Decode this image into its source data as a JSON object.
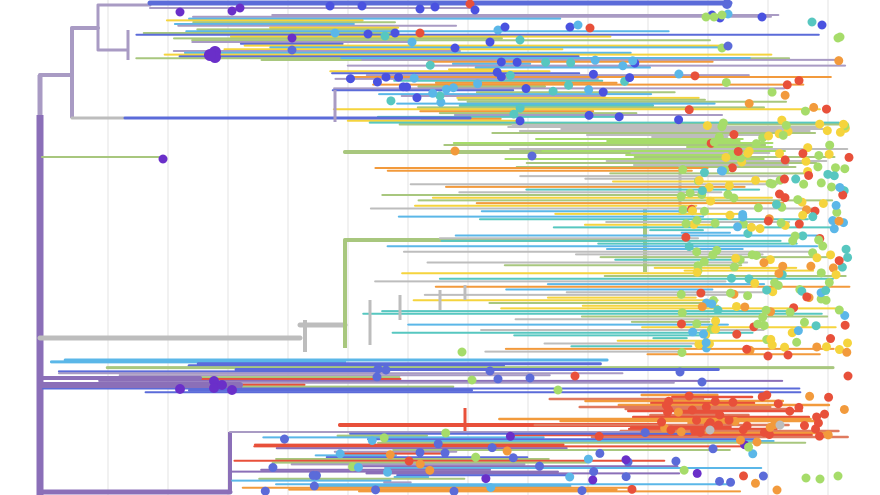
{
  "view": {
    "type": "phylogenetic-tree",
    "layout": "rectangular",
    "labels_visible": false,
    "legend_visible": false,
    "time_grid": true
  },
  "palette": {
    "background": "#ffffff",
    "grid": "#e3e3e3",
    "ancestral": "#8B6FB8",
    "ancestral_light": "#A99BC4",
    "gray_clade": "#BDBDBD",
    "green_clade": "#A8C77E",
    "blue_clade": "#5B6BD9",
    "light_blue": "#5BB7E8",
    "teal": "#57C7C0",
    "red": "#E8503A",
    "orange": "#F29A3C",
    "yellow": "#F5D43D",
    "lime": "#A6DC6A",
    "purple_node": "#6A2FC9"
  },
  "tip_color_scale": [
    {
      "name": "purple",
      "color": "#6A2FC9"
    },
    {
      "name": "blue",
      "color": "#4A52E0"
    },
    {
      "name": "light-blue",
      "color": "#5BB7E8"
    },
    {
      "name": "teal",
      "color": "#57C7C0"
    },
    {
      "name": "green",
      "color": "#A6DC6A"
    },
    {
      "name": "yellow",
      "color": "#F5D43D"
    },
    {
      "name": "orange",
      "color": "#F29A3C"
    },
    {
      "name": "red",
      "color": "#E8503A"
    }
  ],
  "clades": [
    {
      "name": "top-blue-clade",
      "branch_color": "#6F63C8"
    },
    {
      "name": "upper-mixed-clade",
      "branch_color": "#9A8CC0"
    },
    {
      "name": "green-lineage",
      "branch_color": "#A8C77E"
    },
    {
      "name": "gray-large-clade",
      "branch_color": "#BDBDBD"
    },
    {
      "name": "purple-lower-clade",
      "branch_color": "#8B6FB8"
    },
    {
      "name": "red-orange-clade",
      "branch_color": "#E07A5F"
    }
  ]
}
